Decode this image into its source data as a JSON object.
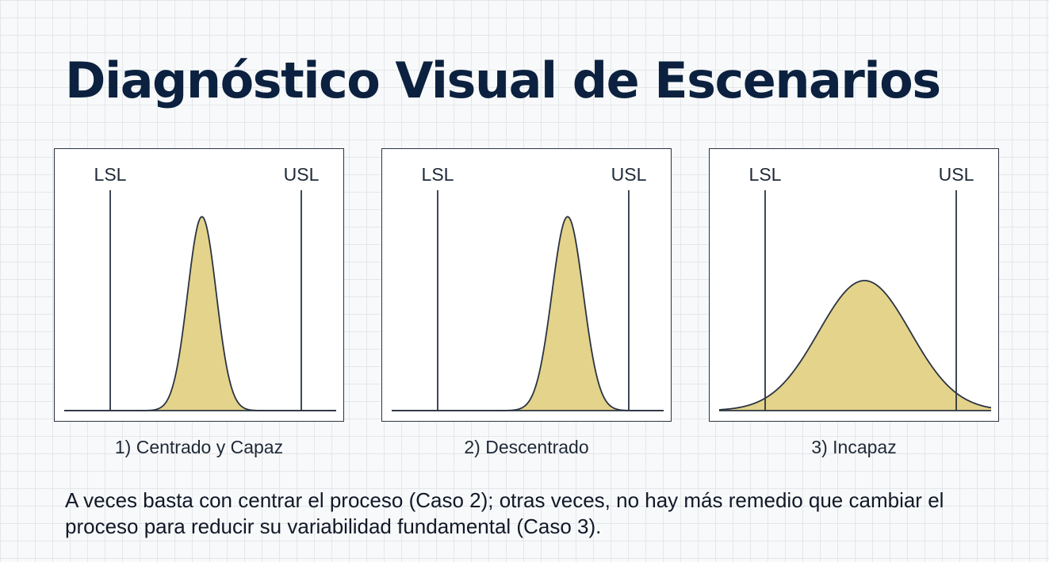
{
  "title": "Diagnóstico Visual de Escenarios",
  "colors": {
    "title": "#0b213f",
    "curve_fill": "#e4d38a",
    "line": "#2b3443"
  },
  "panels": [
    {
      "caption": "1) Centrado y Capaz",
      "lsl_label": "LSL",
      "usl_label": "USL",
      "lsl": 0,
      "usl": 1,
      "mean": 0.48,
      "sd": 0.075,
      "peak": 0.88
    },
    {
      "caption": "2) Descentrado",
      "lsl_label": "LSL",
      "usl_label": "USL",
      "lsl": 0,
      "usl": 1,
      "mean": 0.68,
      "sd": 0.082,
      "peak": 0.88
    },
    {
      "caption": "3) Incapaz",
      "lsl_label": "LSL",
      "usl_label": "USL",
      "lsl": 0,
      "usl": 1,
      "mean": 0.52,
      "sd": 0.24,
      "peak": 0.59
    }
  ],
  "note": "A veces basta con centrar el proceso (Caso 2); otras veces, no hay más remedio que cambiar el proceso para reducir su variabilidad fundamental (Caso 3)."
}
